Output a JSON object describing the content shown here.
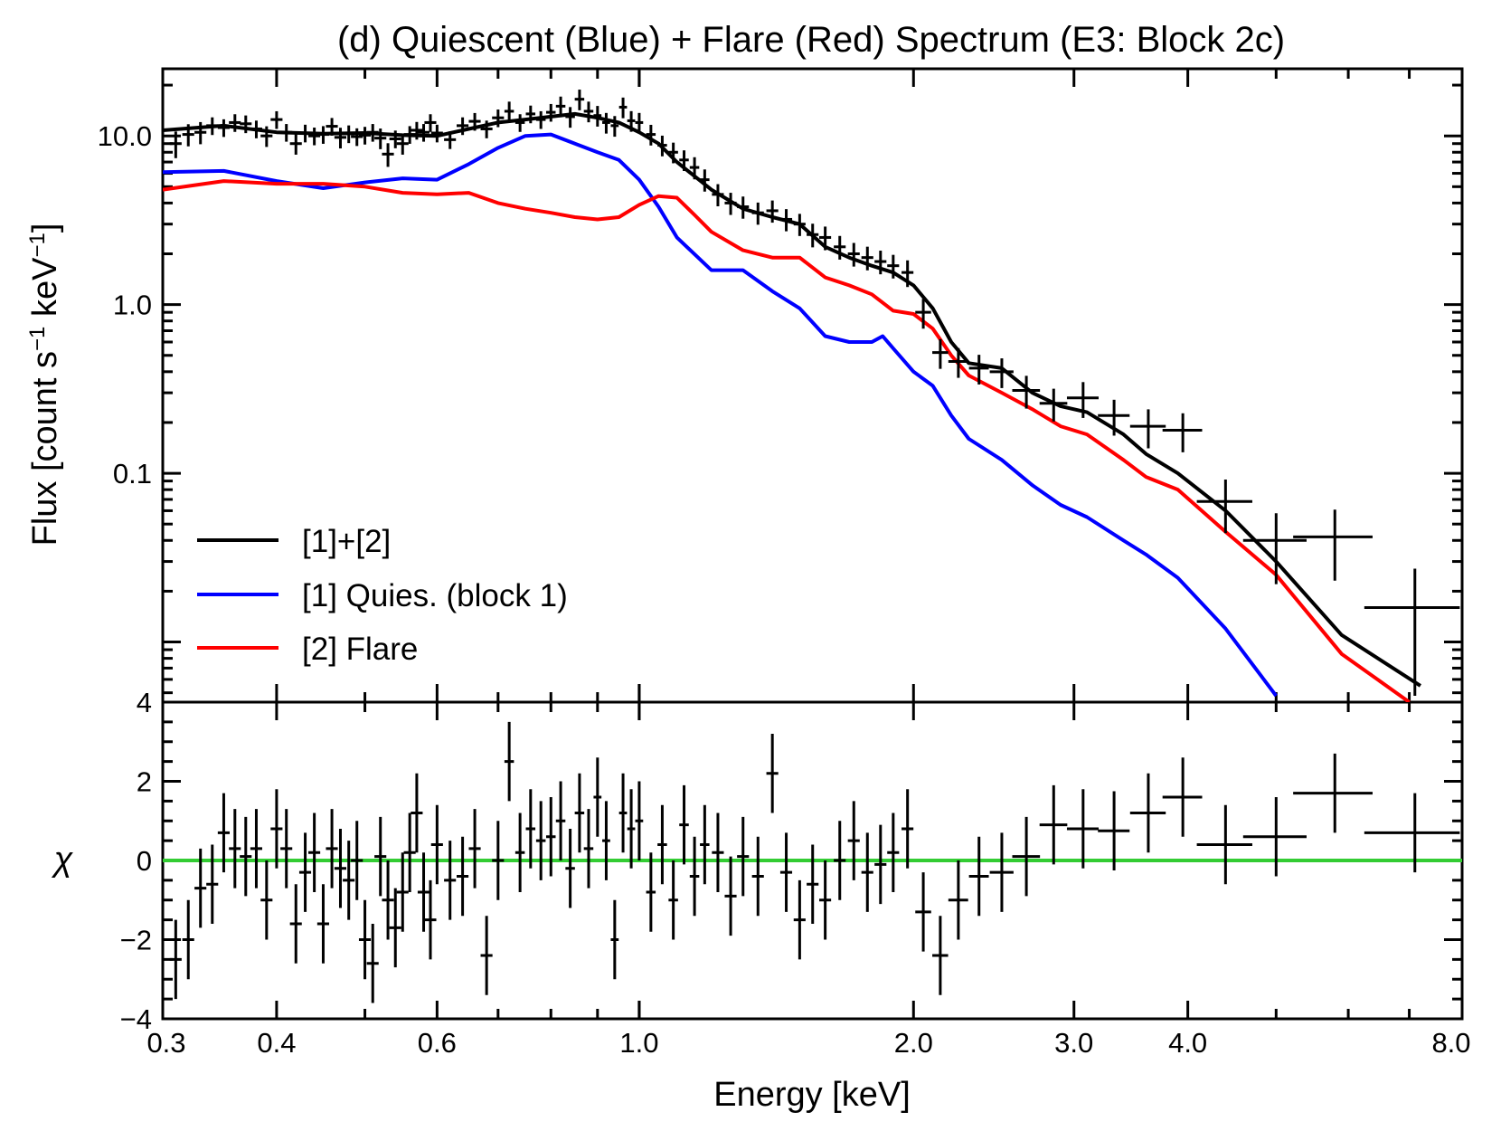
{
  "chart_data": [
    {
      "type": "line",
      "panel": "spectrum",
      "title": "(d) Quiescent (Blue) + Flare (Red) Spectrum (E3: Block 2c)",
      "xlabel": "Energy [keV]",
      "ylabel": "Flux [count s⁻¹ keV⁻¹]",
      "xscale": "log",
      "yscale": "log",
      "xlim": [
        0.3,
        8.0
      ],
      "ylim": [
        0.0044,
        25
      ],
      "x_ticks": [
        0.3,
        0.4,
        0.6,
        1.0,
        2.0,
        3.0,
        4.0,
        8.0
      ],
      "y_tick_labels": [
        "10.0",
        "1.0",
        "0.1"
      ],
      "y_ticks": [
        10,
        1,
        0.1
      ],
      "legend_position": "lower-left",
      "series": [
        {
          "name": "[1]+[2]",
          "color": "#000000",
          "x": [
            0.3,
            0.35,
            0.4,
            0.45,
            0.5,
            0.55,
            0.6,
            0.65,
            0.7,
            0.75,
            0.8,
            0.85,
            0.9,
            0.95,
            1.0,
            1.05,
            1.1,
            1.2,
            1.3,
            1.4,
            1.5,
            1.6,
            1.7,
            1.8,
            1.9,
            2.0,
            2.1,
            2.2,
            2.3,
            2.5,
            2.7,
            2.9,
            3.1,
            3.4,
            3.6,
            3.9,
            4.4,
            5.0,
            5.9,
            7.2
          ],
          "y": [
            10.8,
            11.5,
            10.5,
            10.3,
            10.4,
            10.1,
            10.0,
            11.0,
            12.0,
            12.5,
            13.0,
            13.5,
            12.8,
            12.0,
            10.5,
            9.0,
            7.0,
            4.8,
            3.7,
            3.3,
            3.0,
            2.2,
            1.9,
            1.7,
            1.55,
            1.3,
            0.95,
            0.6,
            0.45,
            0.42,
            0.3,
            0.25,
            0.23,
            0.17,
            0.13,
            0.1,
            0.06,
            0.03,
            0.011,
            0.0055
          ]
        },
        {
          "name": "[1] Quies. (block 1)",
          "color": "#0000ff",
          "x": [
            0.3,
            0.35,
            0.4,
            0.45,
            0.5,
            0.55,
            0.6,
            0.65,
            0.7,
            0.75,
            0.8,
            0.85,
            0.9,
            0.95,
            1.0,
            1.05,
            1.1,
            1.2,
            1.3,
            1.4,
            1.5,
            1.6,
            1.7,
            1.8,
            1.85,
            1.9,
            2.0,
            2.1,
            2.2,
            2.3,
            2.5,
            2.7,
            2.9,
            3.1,
            3.4,
            3.6,
            3.9,
            4.4,
            5.0
          ],
          "y": [
            6.1,
            6.2,
            5.4,
            4.9,
            5.3,
            5.6,
            5.5,
            6.8,
            8.5,
            10.0,
            10.2,
            9.0,
            8.0,
            7.2,
            5.5,
            3.8,
            2.5,
            1.6,
            1.6,
            1.2,
            0.95,
            0.65,
            0.6,
            0.6,
            0.65,
            0.55,
            0.4,
            0.33,
            0.22,
            0.16,
            0.12,
            0.085,
            0.065,
            0.055,
            0.04,
            0.033,
            0.024,
            0.012,
            0.0048
          ]
        },
        {
          "name": "[2] Flare",
          "color": "#ff0000",
          "x": [
            0.3,
            0.35,
            0.4,
            0.45,
            0.5,
            0.55,
            0.6,
            0.65,
            0.7,
            0.75,
            0.8,
            0.85,
            0.9,
            0.95,
            1.0,
            1.05,
            1.1,
            1.15,
            1.2,
            1.3,
            1.4,
            1.5,
            1.6,
            1.7,
            1.8,
            1.9,
            2.0,
            2.1,
            2.2,
            2.3,
            2.5,
            2.7,
            2.9,
            3.1,
            3.4,
            3.6,
            3.9,
            4.4,
            5.0,
            5.9,
            7.0
          ],
          "y": [
            4.8,
            5.4,
            5.2,
            5.2,
            5.0,
            4.6,
            4.5,
            4.6,
            4.0,
            3.7,
            3.5,
            3.3,
            3.2,
            3.3,
            3.9,
            4.4,
            4.3,
            3.4,
            2.7,
            2.1,
            1.9,
            1.9,
            1.45,
            1.3,
            1.15,
            0.92,
            0.88,
            0.72,
            0.5,
            0.38,
            0.3,
            0.24,
            0.19,
            0.17,
            0.12,
            0.095,
            0.08,
            0.045,
            0.025,
            0.0085,
            0.0044
          ]
        }
      ],
      "data_points": {
        "name": "data",
        "color": "#000000",
        "x": [
          0.31,
          0.32,
          0.33,
          0.34,
          0.35,
          0.36,
          0.37,
          0.38,
          0.39,
          0.4,
          0.41,
          0.42,
          0.43,
          0.44,
          0.45,
          0.46,
          0.47,
          0.48,
          0.49,
          0.5,
          0.51,
          0.52,
          0.53,
          0.54,
          0.55,
          0.56,
          0.57,
          0.58,
          0.59,
          0.6,
          0.62,
          0.64,
          0.66,
          0.68,
          0.7,
          0.72,
          0.74,
          0.76,
          0.78,
          0.8,
          0.82,
          0.84,
          0.86,
          0.88,
          0.9,
          0.92,
          0.94,
          0.96,
          0.98,
          1.0,
          1.03,
          1.06,
          1.09,
          1.12,
          1.15,
          1.18,
          1.22,
          1.26,
          1.3,
          1.35,
          1.4,
          1.45,
          1.5,
          1.55,
          1.6,
          1.66,
          1.72,
          1.78,
          1.84,
          1.9,
          1.97,
          2.05,
          2.14,
          2.24,
          2.36,
          2.5,
          2.66,
          2.85,
          3.07,
          3.32,
          3.62,
          3.95,
          4.4,
          5.0,
          5.8,
          7.1
        ],
        "y": [
          9.0,
          10.2,
          10.5,
          11.5,
          11.2,
          12.0,
          11.8,
          11.0,
          10.0,
          12.5,
          10.5,
          9.0,
          10.4,
          10.0,
          10.2,
          11.4,
          9.8,
          10.3,
          9.9,
          10.1,
          10.5,
          9.7,
          7.8,
          9.6,
          9.0,
          10.2,
          10.8,
          10.5,
          12.0,
          10.4,
          9.5,
          11.5,
          12.2,
          11.0,
          12.8,
          14.0,
          12.0,
          13.5,
          12.5,
          13.8,
          15.0,
          13.0,
          16.5,
          14.0,
          13.2,
          12.0,
          11.5,
          14.8,
          12.3,
          12.0,
          10.2,
          8.8,
          8.0,
          7.2,
          6.5,
          5.5,
          4.5,
          4.0,
          3.8,
          3.5,
          3.6,
          3.2,
          3.0,
          2.6,
          2.5,
          2.2,
          2.0,
          1.9,
          1.8,
          1.7,
          1.55,
          0.9,
          0.52,
          0.46,
          0.42,
          0.4,
          0.31,
          0.26,
          0.28,
          0.22,
          0.19,
          0.18,
          0.068,
          0.04,
          0.042,
          0.016
        ],
        "xerr_frac": [
          0.015,
          0.015,
          0.015,
          0.015,
          0.015,
          0.015,
          0.015,
          0.015,
          0.015,
          0.015,
          0.015,
          0.015,
          0.015,
          0.015,
          0.015,
          0.015,
          0.015,
          0.015,
          0.015,
          0.015,
          0.015,
          0.015,
          0.015,
          0.015,
          0.015,
          0.015,
          0.015,
          0.015,
          0.015,
          0.015,
          0.015,
          0.015,
          0.015,
          0.015,
          0.015,
          0.012,
          0.012,
          0.012,
          0.012,
          0.012,
          0.012,
          0.012,
          0.012,
          0.012,
          0.01,
          0.01,
          0.01,
          0.01,
          0.01,
          0.01,
          0.012,
          0.012,
          0.012,
          0.012,
          0.012,
          0.012,
          0.015,
          0.015,
          0.015,
          0.015,
          0.015,
          0.015,
          0.015,
          0.015,
          0.015,
          0.015,
          0.015,
          0.015,
          0.015,
          0.015,
          0.015,
          0.02,
          0.02,
          0.025,
          0.025,
          0.03,
          0.035,
          0.035,
          0.04,
          0.04,
          0.045,
          0.05,
          0.07,
          0.08,
          0.1,
          0.12
        ],
        "yerr_frac": [
          0.18,
          0.15,
          0.15,
          0.12,
          0.12,
          0.12,
          0.12,
          0.12,
          0.14,
          0.12,
          0.12,
          0.14,
          0.12,
          0.12,
          0.12,
          0.12,
          0.14,
          0.12,
          0.12,
          0.12,
          0.12,
          0.14,
          0.16,
          0.12,
          0.14,
          0.12,
          0.12,
          0.12,
          0.12,
          0.12,
          0.12,
          0.12,
          0.12,
          0.12,
          0.12,
          0.14,
          0.12,
          0.12,
          0.12,
          0.12,
          0.14,
          0.14,
          0.14,
          0.14,
          0.14,
          0.14,
          0.14,
          0.14,
          0.14,
          0.14,
          0.14,
          0.14,
          0.14,
          0.14,
          0.15,
          0.15,
          0.15,
          0.15,
          0.15,
          0.15,
          0.15,
          0.15,
          0.15,
          0.16,
          0.16,
          0.16,
          0.16,
          0.16,
          0.16,
          0.16,
          0.18,
          0.2,
          0.2,
          0.2,
          0.2,
          0.2,
          0.22,
          0.22,
          0.24,
          0.24,
          0.26,
          0.26,
          0.35,
          0.45,
          0.45,
          0.7
        ]
      }
    },
    {
      "type": "scatter",
      "panel": "residuals",
      "xlabel": "Energy [keV]",
      "ylabel": "χ",
      "xscale": "log",
      "xlim": [
        0.3,
        8.0
      ],
      "ylim": [
        -4,
        4
      ],
      "y_ticks": [
        -4,
        -2,
        0,
        2,
        4
      ],
      "y_tick_labels": [
        "−4",
        "−2",
        "0",
        "2",
        "4"
      ],
      "zero_line_color": "#33cc33",
      "x": [
        0.31,
        0.32,
        0.33,
        0.34,
        0.35,
        0.36,
        0.37,
        0.38,
        0.39,
        0.4,
        0.41,
        0.42,
        0.43,
        0.44,
        0.45,
        0.46,
        0.47,
        0.48,
        0.49,
        0.5,
        0.51,
        0.52,
        0.53,
        0.54,
        0.55,
        0.56,
        0.57,
        0.58,
        0.59,
        0.6,
        0.62,
        0.64,
        0.66,
        0.68,
        0.7,
        0.72,
        0.74,
        0.76,
        0.78,
        0.8,
        0.82,
        0.84,
        0.86,
        0.88,
        0.9,
        0.92,
        0.94,
        0.96,
        0.98,
        1.0,
        1.03,
        1.06,
        1.09,
        1.12,
        1.15,
        1.18,
        1.22,
        1.26,
        1.3,
        1.35,
        1.4,
        1.45,
        1.5,
        1.55,
        1.6,
        1.66,
        1.72,
        1.78,
        1.84,
        1.9,
        1.97,
        2.05,
        2.14,
        2.24,
        2.36,
        2.5,
        2.66,
        2.85,
        3.07,
        3.32,
        3.62,
        3.95,
        4.4,
        5.0,
        5.8,
        7.1
      ],
      "y": [
        -2.5,
        -2.0,
        -0.7,
        -0.6,
        0.7,
        0.3,
        0.1,
        0.3,
        -1.0,
        0.8,
        0.3,
        -1.6,
        -0.3,
        0.2,
        -1.6,
        0.3,
        -0.2,
        -0.5,
        0.0,
        -2.0,
        -2.6,
        0.1,
        -1.0,
        -1.7,
        -0.8,
        0.2,
        1.2,
        -0.8,
        -1.5,
        0.4,
        -0.5,
        -0.4,
        0.3,
        -2.4,
        0.0,
        2.5,
        0.2,
        0.8,
        0.5,
        0.6,
        1.0,
        -0.2,
        1.2,
        0.3,
        1.6,
        0.5,
        -2.0,
        1.2,
        0.8,
        1.0,
        -0.8,
        0.4,
        -1.0,
        0.9,
        -0.4,
        0.4,
        0.2,
        -0.9,
        0.1,
        -0.4,
        2.2,
        -0.3,
        -1.5,
        -0.6,
        -1.0,
        0.0,
        0.5,
        -0.3,
        -0.1,
        0.2,
        0.8,
        -1.3,
        -2.4,
        -1.0,
        -0.4,
        -0.3,
        0.1,
        0.9,
        0.8,
        0.75,
        1.2,
        1.6,
        0.4,
        0.6,
        1.7,
        0.7
      ],
      "xerr_frac": [
        0.015,
        0.015,
        0.015,
        0.015,
        0.015,
        0.015,
        0.015,
        0.015,
        0.015,
        0.015,
        0.015,
        0.015,
        0.015,
        0.015,
        0.015,
        0.015,
        0.015,
        0.015,
        0.015,
        0.015,
        0.015,
        0.015,
        0.015,
        0.015,
        0.015,
        0.015,
        0.015,
        0.015,
        0.015,
        0.015,
        0.015,
        0.015,
        0.015,
        0.015,
        0.015,
        0.012,
        0.012,
        0.012,
        0.012,
        0.012,
        0.012,
        0.012,
        0.012,
        0.012,
        0.01,
        0.01,
        0.01,
        0.01,
        0.01,
        0.01,
        0.012,
        0.012,
        0.012,
        0.012,
        0.012,
        0.012,
        0.015,
        0.015,
        0.015,
        0.015,
        0.015,
        0.015,
        0.015,
        0.015,
        0.015,
        0.015,
        0.015,
        0.015,
        0.015,
        0.015,
        0.015,
        0.02,
        0.02,
        0.025,
        0.025,
        0.03,
        0.035,
        0.035,
        0.04,
        0.04,
        0.045,
        0.05,
        0.07,
        0.08,
        0.1,
        0.12
      ],
      "yerr": 1
    }
  ],
  "legend": {
    "items": [
      {
        "label": "[1]+[2]",
        "color": "#000000"
      },
      {
        "label": "[1] Quies. (block 1)",
        "color": "#0000ff"
      },
      {
        "label": "[2] Flare",
        "color": "#ff0000"
      }
    ]
  },
  "text": {
    "title": "(d) Quiescent (Blue) + Flare (Red) Spectrum (E3: Block 2c)",
    "xlabel": "Energy [keV]",
    "ylabel_main": "Flux [count s",
    "ylabel_sup1": "−1",
    "ylabel_mid": " keV",
    "ylabel_sup2": "−1",
    "ylabel_end": "]",
    "ylabel_res": "χ",
    "x_tick_labels": [
      "0.3",
      "0.4",
      "0.6",
      "1.0",
      "2.0",
      "3.0",
      "4.0",
      "8.0"
    ],
    "y_tick_labels_top": [
      "10.0",
      "1.0",
      "0.1"
    ],
    "y_tick_label_shared": "4",
    "y_tick_labels_res": [
      "2",
      "0",
      "−2",
      "−4"
    ]
  }
}
